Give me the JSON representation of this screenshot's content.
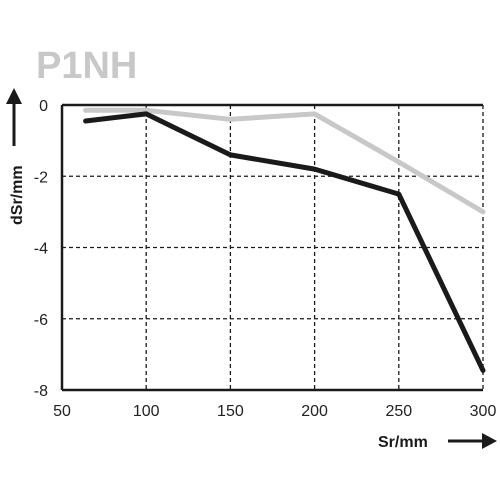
{
  "chart_data": {
    "type": "line",
    "title": "P1NH",
    "xlabel": "Sr/mm",
    "ylabel": "dSr/mm",
    "xlim": [
      50,
      300
    ],
    "ylim": [
      -8,
      0
    ],
    "xticks": [
      50,
      100,
      150,
      200,
      250,
      300
    ],
    "yticks": [
      0,
      -2,
      -4,
      -6,
      -8
    ],
    "grid": true,
    "series": [
      {
        "color": "#c8c8c8",
        "points": [
          [
            64,
            -0.15
          ],
          [
            100,
            -0.15
          ],
          [
            150,
            -0.4
          ],
          [
            200,
            -0.25
          ],
          [
            250,
            -1.6
          ],
          [
            300,
            -3.0
          ]
        ]
      },
      {
        "color": "#1a1a1a",
        "points": [
          [
            64,
            -0.45
          ],
          [
            100,
            -0.25
          ],
          [
            150,
            -1.4
          ],
          [
            200,
            -1.8
          ],
          [
            250,
            -2.5
          ],
          [
            300,
            -7.45
          ]
        ]
      }
    ],
    "colors": {
      "title": "#c8c8c8",
      "axis": "#1a1a1a",
      "grid": "#1a1a1a"
    }
  }
}
